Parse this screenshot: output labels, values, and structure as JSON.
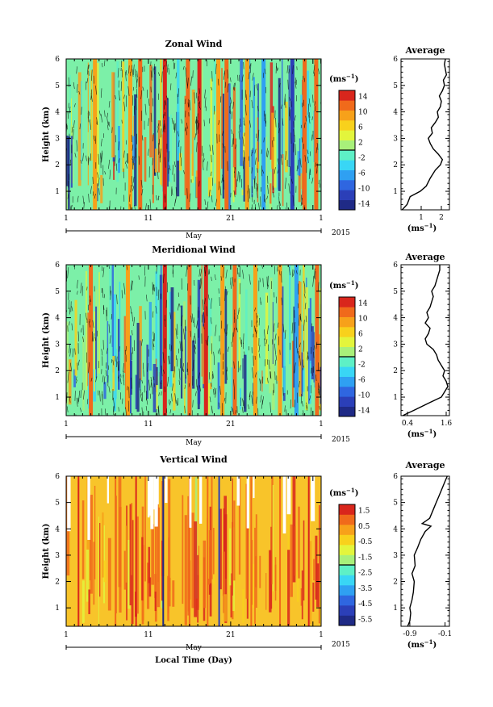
{
  "figure": {
    "x_axis_label": "Local Time (Day)",
    "month_label": "May",
    "year_label": "2015",
    "unit_label": "(ms",
    "unit_exp": "−1",
    "y_axis_label": "Height (km)",
    "average_title": "Average"
  },
  "chart_data": [
    {
      "id": "zonal",
      "type": "heatmap",
      "title": "Zonal Wind",
      "ylabel": "Height (km)",
      "xlabel": "",
      "x_ticks": [
        "1",
        "11",
        "21",
        "1"
      ],
      "y_ticks": [
        "1",
        "2",
        "3",
        "4",
        "5",
        "6"
      ],
      "ylim": [
        0.3,
        6
      ],
      "xlim_day": [
        1,
        32
      ],
      "colorbar": {
        "labels": [
          "14",
          "10",
          "6",
          "2",
          "-2",
          "-6",
          "-10",
          "-14"
        ],
        "range": [
          -16,
          16
        ],
        "colors": [
          "#1f2a86",
          "#2b3fb8",
          "#2f66e0",
          "#2fa0f2",
          "#39d6f5",
          "#5ef0c6",
          "#a8f07a",
          "#e3f53c",
          "#f8d11c",
          "#f7a11a",
          "#f06a1b",
          "#d9261c"
        ]
      },
      "background_color": "#7cf0a8",
      "dense_contours": true,
      "features": [
        {
          "day": 4.5,
          "value": 8
        },
        {
          "day": 8.8,
          "value": 10
        },
        {
          "day": 10.0,
          "value": 12
        },
        {
          "day": 13.0,
          "value": 15
        },
        {
          "day": 15.8,
          "value": 12
        },
        {
          "day": 17.2,
          "value": 14
        },
        {
          "day": 19.5,
          "value": 10
        },
        {
          "day": 20.5,
          "value": 12
        },
        {
          "day": 23.0,
          "value": 9
        },
        {
          "day": 25.0,
          "value": -8
        },
        {
          "day": 28.5,
          "value": -12
        },
        {
          "day": 30.0,
          "value": 13
        },
        {
          "day": 31.4,
          "value": 12
        }
      ],
      "average": {
        "title": "Average",
        "xlabel": "(ms",
        "x_ticks": [
          "1",
          "2"
        ],
        "xlim": [
          0,
          2.4
        ],
        "x_tick_values": [
          1,
          2
        ],
        "heights": [
          0.3,
          0.5,
          0.8,
          1.0,
          1.2,
          1.5,
          1.8,
          2.0,
          2.2,
          2.4,
          2.6,
          2.8,
          3.0,
          3.2,
          3.4,
          3.6,
          3.8,
          4.0,
          4.2,
          4.4,
          4.6,
          4.8,
          5.0,
          5.2,
          5.4,
          5.6,
          5.8,
          6.0
        ],
        "values": [
          0.05,
          0.3,
          0.45,
          0.95,
          1.25,
          1.45,
          1.7,
          1.95,
          2.05,
          1.85,
          1.6,
          1.45,
          1.35,
          1.55,
          1.5,
          1.7,
          1.85,
          1.8,
          1.95,
          2.0,
          1.9,
          2.05,
          2.15,
          2.1,
          2.25,
          2.2,
          2.15,
          2.2
        ]
      }
    },
    {
      "id": "meridional",
      "type": "heatmap",
      "title": "Meridional Wind",
      "ylabel": "Height (km)",
      "xlabel": "",
      "x_ticks": [
        "1",
        "11",
        "21",
        "1"
      ],
      "y_ticks": [
        "1",
        "2",
        "3",
        "4",
        "5",
        "6"
      ],
      "ylim": [
        0.3,
        6
      ],
      "xlim_day": [
        1,
        32
      ],
      "colorbar": {
        "labels": [
          "14",
          "10",
          "6",
          "2",
          "-2",
          "-6",
          "-10",
          "-14"
        ],
        "range": [
          -16,
          16
        ],
        "colors": [
          "#1f2a86",
          "#2b3fb8",
          "#2f66e0",
          "#2fa0f2",
          "#39d6f5",
          "#5ef0c6",
          "#a8f07a",
          "#e3f53c",
          "#f8d11c",
          "#f7a11a",
          "#f06a1b",
          "#d9261c"
        ]
      },
      "background_color": "#7cf0a8",
      "dense_contours": true,
      "features": [
        {
          "day": 4.0,
          "value": 12
        },
        {
          "day": 8.5,
          "value": 10
        },
        {
          "day": 13.0,
          "value": 15
        },
        {
          "day": 16.0,
          "value": 12
        },
        {
          "day": 18.0,
          "value": 14
        },
        {
          "day": 20.0,
          "value": 10
        },
        {
          "day": 21.5,
          "value": 12
        },
        {
          "day": 24.0,
          "value": 8
        },
        {
          "day": 27.0,
          "value": 10
        },
        {
          "day": 29.0,
          "value": -6
        },
        {
          "day": 31.5,
          "value": 12
        }
      ],
      "average": {
        "title": "Average",
        "xlabel": "(ms",
        "x_ticks": [
          "0.4",
          "1.6"
        ],
        "xlim": [
          0.2,
          1.7
        ],
        "x_tick_values": [
          0.4,
          1.6
        ],
        "heights": [
          0.3,
          0.5,
          0.8,
          1.0,
          1.2,
          1.4,
          1.6,
          1.8,
          2.0,
          2.2,
          2.4,
          2.6,
          2.8,
          3.0,
          3.2,
          3.4,
          3.6,
          3.8,
          4.0,
          4.2,
          4.4,
          4.6,
          4.8,
          5.0,
          5.2,
          5.4,
          5.6,
          5.8,
          6.0
        ],
        "values": [
          0.25,
          0.6,
          1.1,
          1.45,
          1.55,
          1.65,
          1.6,
          1.5,
          1.55,
          1.45,
          1.35,
          1.3,
          1.2,
          1.0,
          0.95,
          1.05,
          1.1,
          0.95,
          1.05,
          1.0,
          1.1,
          1.15,
          1.2,
          1.15,
          1.25,
          1.3,
          1.35,
          1.4,
          1.4
        ]
      }
    },
    {
      "id": "vertical",
      "type": "heatmap",
      "title": "Vertical Wind",
      "ylabel": "Height (km)",
      "xlabel": "Local Time (Day)",
      "x_ticks": [
        "1",
        "11",
        "21",
        "1"
      ],
      "y_ticks": [
        "1",
        "2",
        "3",
        "4",
        "5",
        "6"
      ],
      "ylim": [
        0.3,
        6
      ],
      "xlim_day": [
        1,
        32
      ],
      "colorbar": {
        "labels": [
          "1.5",
          "0.5",
          "-0.5",
          "-1.5",
          "-2.5",
          "-3.5",
          "-4.5",
          "-5.5"
        ],
        "range": [
          -6,
          2
        ],
        "colors": [
          "#1f2a86",
          "#2b3fb8",
          "#2f66e0",
          "#2fa0f2",
          "#39d6f5",
          "#5ef0c6",
          "#a8f07a",
          "#e3f53c",
          "#f8d11c",
          "#f7a11a",
          "#f06a1b",
          "#d9261c"
        ]
      },
      "background_color": "#f8c42a",
      "dense_contours": false,
      "features": [
        {
          "day": 2.5,
          "value": 1.5
        },
        {
          "day": 7.0,
          "value": 1.2
        },
        {
          "day": 9.5,
          "value": 1.5
        },
        {
          "day": 12.8,
          "value": -5.5
        },
        {
          "day": 16.0,
          "value": 1.3
        },
        {
          "day": 18.2,
          "value": 1.0
        },
        {
          "day": 19.6,
          "value": -5.0
        },
        {
          "day": 23.5,
          "value": 1.3
        },
        {
          "day": 27.0,
          "value": 1.0
        },
        {
          "day": 30.5,
          "value": 1.4
        }
      ],
      "average": {
        "title": "Average",
        "xlabel": "(ms",
        "x_ticks": [
          "-0.9",
          "-0.1"
        ],
        "xlim": [
          -1.1,
          0.0
        ],
        "x_tick_values": [
          -0.9,
          -0.1
        ],
        "heights": [
          0.3,
          0.5,
          0.8,
          1.0,
          1.3,
          1.6,
          2.0,
          2.3,
          2.6,
          3.0,
          3.3,
          3.6,
          3.9,
          4.1,
          4.2,
          4.4,
          4.6,
          4.8,
          5.0,
          5.2,
          5.4,
          5.6,
          5.8,
          6.0
        ],
        "values": [
          -0.95,
          -0.9,
          -0.88,
          -0.9,
          -0.85,
          -0.82,
          -0.8,
          -0.85,
          -0.78,
          -0.8,
          -0.72,
          -0.65,
          -0.55,
          -0.42,
          -0.62,
          -0.45,
          -0.4,
          -0.35,
          -0.3,
          -0.25,
          -0.2,
          -0.15,
          -0.1,
          -0.05
        ]
      }
    }
  ]
}
